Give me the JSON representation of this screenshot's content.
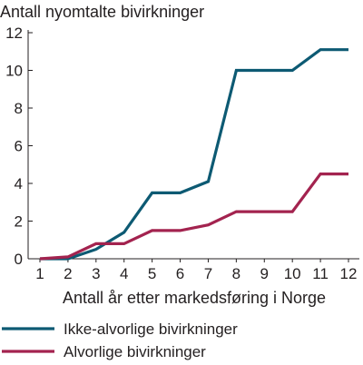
{
  "chart_data": {
    "type": "line",
    "title": "Antall nyomtalte bivirkninger",
    "xlabel": "Antall år etter markedsføring i Norge",
    "ylabel": "",
    "x": [
      1,
      2,
      3,
      4,
      5,
      6,
      7,
      8,
      9,
      10,
      11,
      12
    ],
    "xticks": [
      "1",
      "2",
      "3",
      "4",
      "5",
      "6",
      "7",
      "8",
      "9",
      "10",
      "11",
      "12"
    ],
    "yticks": [
      "0",
      "2",
      "4",
      "6",
      "8",
      "10",
      "12"
    ],
    "ylim": [
      0,
      12
    ],
    "xlim": [
      1,
      12
    ],
    "grid": false,
    "legend_position": "bottom",
    "series": [
      {
        "name": "Ikke-alvorlige bivirkninger",
        "color": "#0d5a73",
        "values": [
          0,
          0,
          0.5,
          1.4,
          3.5,
          3.5,
          4.1,
          10,
          10,
          10,
          11.1,
          11.1
        ]
      },
      {
        "name": "Alvorlige bivirkninger",
        "color": "#a3234f",
        "values": [
          0,
          0.1,
          0.8,
          0.8,
          1.5,
          1.5,
          1.8,
          2.5,
          2.5,
          2.5,
          4.5,
          4.5
        ]
      }
    ]
  }
}
